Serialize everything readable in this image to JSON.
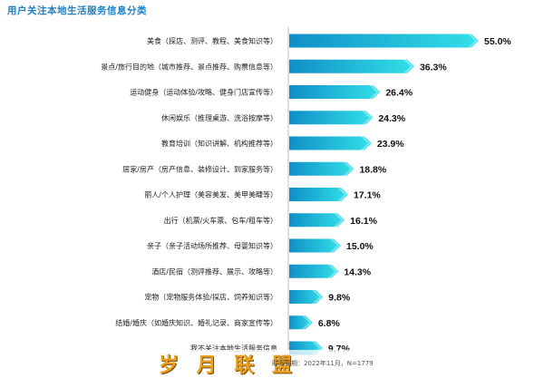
{
  "title": "用户关注本地生活服务信息分类",
  "source_note": "时间周期：2022年11月，N=1779",
  "watermark_text": "岁 月 联 盟",
  "watermark_url": "www.5yue.com",
  "colors": {
    "bar_start": "#0f8fc8",
    "bar_end": "#33e0e8",
    "title": "#1a80c9"
  },
  "chart_data": {
    "type": "bar",
    "orientation": "horizontal",
    "categories": [
      "美食（探店、测评、教程、美食知识等）",
      "景点/旅行目的地（城市推荐、景点推荐、购票信息等）",
      "运动健身（运动体验/攻略、健身门店宣传等）",
      "休闲娱乐（推理桌游、洗浴按摩等）",
      "教育培训（知识讲解、机构推荐等）",
      "居家/房产（房产信息、装修设计、到家服务等）",
      "丽人/个人护理（美容美发、美甲美睫等）",
      "出行（机票/火车票、包车/租车等）",
      "亲子（亲子活动场所推荐、母婴知识等）",
      "酒店/民宿（测评推荐、展示、攻略等）",
      "宠物（宠物服务体验/探店、饲养知识等）",
      "结婚/婚庆（如婚庆知识、婚礼记录、商家宣传等）",
      "我不关注本地生活服务信息"
    ],
    "values": [
      55.0,
      36.3,
      26.4,
      24.3,
      23.9,
      18.8,
      17.1,
      16.1,
      15.0,
      14.3,
      9.8,
      6.8,
      9.7
    ],
    "value_labels": [
      "55.0%",
      "36.3%",
      "26.4%",
      "24.3%",
      "23.9%",
      "18.8%",
      "17.1%",
      "16.1%",
      "15.0%",
      "14.3%",
      "9.8%",
      "6.8%",
      "9.7%"
    ],
    "unit": "%",
    "xlim": [
      0,
      55
    ]
  }
}
